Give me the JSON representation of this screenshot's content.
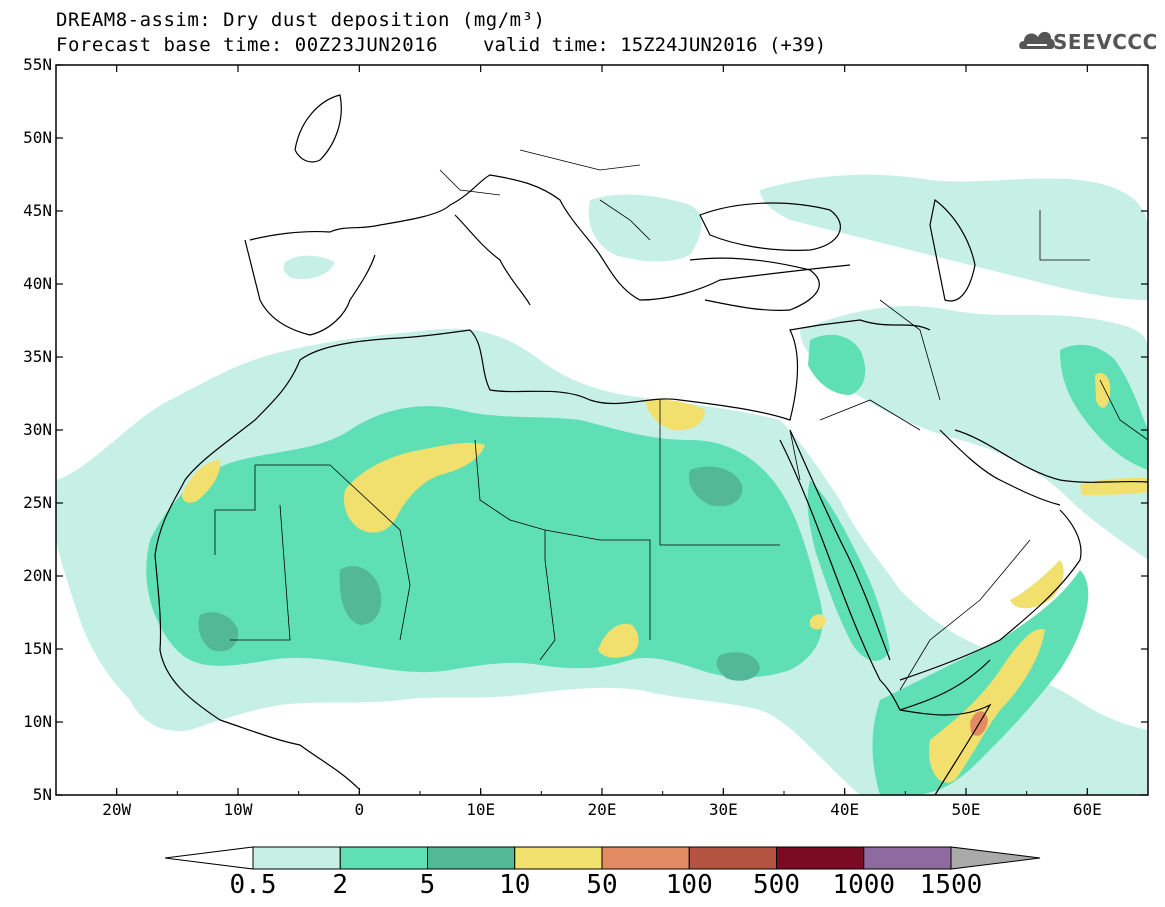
{
  "header": {
    "title_line1": "DREAM8-assim: Dry dust deposition (mg/m³)",
    "title_line2": "Forecast base time: 00Z23JUN2016",
    "valid_time": "valid time: 15Z24JUN2016 (+39)",
    "logo_text": "SEEVCCC"
  },
  "map": {
    "region": "North Africa, Europe and Middle East",
    "lon_range": [
      -25,
      65
    ],
    "lat_range": [
      5,
      55
    ],
    "lat_labels": [
      "55N",
      "50N",
      "45N",
      "40N",
      "35N",
      "30N",
      "25N",
      "20N",
      "15N",
      "10N",
      "5N"
    ],
    "lon_labels": [
      "20W",
      "10W",
      "0",
      "10E",
      "20E",
      "30E",
      "40E",
      "50E",
      "60E"
    ],
    "ocean_color": "#ffffff",
    "coastline_color": "#000000"
  },
  "colorbar": {
    "labels": [
      "0.5",
      "2",
      "5",
      "10",
      "50",
      "100",
      "500",
      "1000",
      "1500"
    ],
    "colors": [
      "#c6f0e6",
      "#5fe0b4",
      "#52b896",
      "#f2e06e",
      "#e38c63",
      "#b4533f",
      "#7b0b22",
      "#8e6aa0"
    ],
    "below_color": "#ffffff",
    "above_color": "#aaaaaa"
  }
}
